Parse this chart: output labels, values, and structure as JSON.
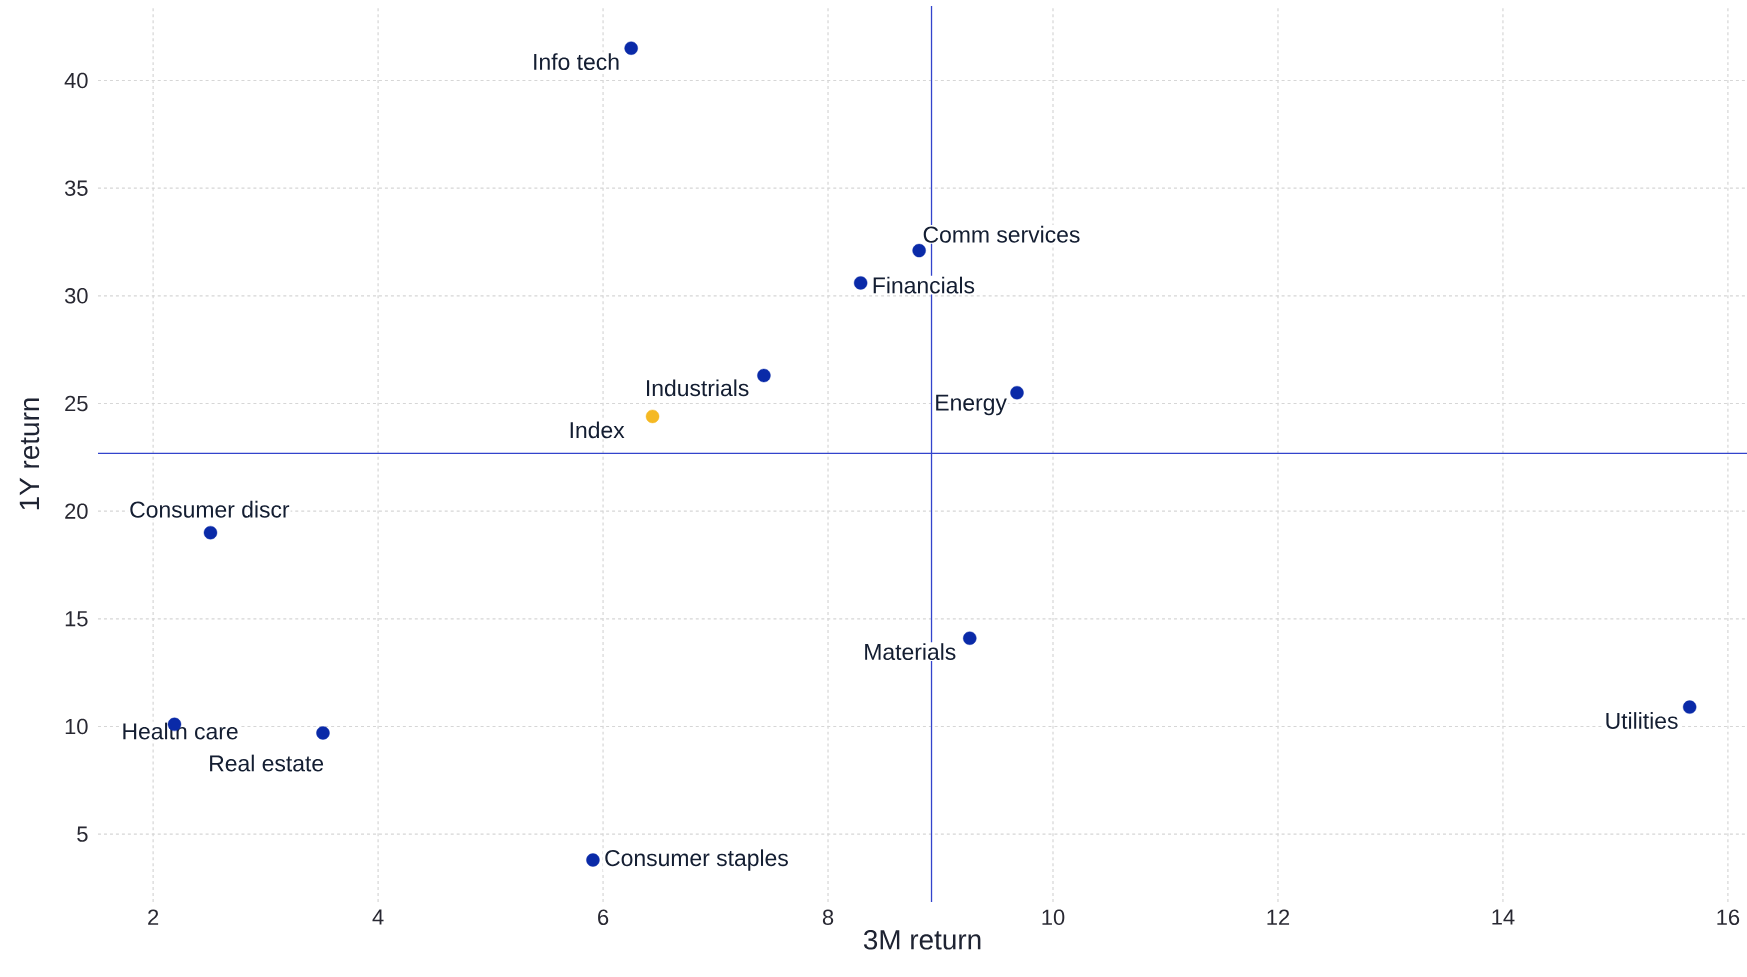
{
  "chart_data": {
    "type": "scatter",
    "xlabel": "3M return",
    "ylabel": "1Y return",
    "xlim": [
      1.51,
      16.17
    ],
    "ylim": [
      1.85,
      43.46
    ],
    "xticks": [
      2,
      4,
      6,
      8,
      10,
      12,
      14,
      16
    ],
    "yticks": [
      5,
      10,
      15,
      20,
      25,
      30,
      35,
      40
    ],
    "grid": true,
    "legend": false,
    "marker": "circle",
    "ref_lines": [
      {
        "axis": "x",
        "value": 8.92,
        "color": "#3344cc"
      },
      {
        "axis": "y",
        "value": 22.68,
        "color": "#3344cc"
      }
    ],
    "series": [
      {
        "name": "Info tech",
        "color": "#0a2aa8",
        "x": [
          6.25
        ],
        "values": [
          41.5
        ]
      },
      {
        "name": "Comm services",
        "color": "#0a2aa8",
        "x": [
          8.81
        ],
        "values": [
          32.1
        ]
      },
      {
        "name": "Financials",
        "color": "#0a2aa8",
        "x": [
          8.29
        ],
        "values": [
          30.6
        ]
      },
      {
        "name": "Industrials",
        "color": "#0a2aa8",
        "x": [
          7.43
        ],
        "values": [
          26.3
        ]
      },
      {
        "name": "Index",
        "color": "#f5b923",
        "x": [
          6.44
        ],
        "values": [
          24.4
        ]
      },
      {
        "name": "Energy",
        "color": "#0a2aa8",
        "x": [
          9.68
        ],
        "values": [
          25.5
        ]
      },
      {
        "name": "Consumer discr",
        "color": "#0a2aa8",
        "x": [
          2.51
        ],
        "values": [
          19.0
        ]
      },
      {
        "name": "Materials",
        "color": "#0a2aa8",
        "x": [
          9.26
        ],
        "values": [
          14.1
        ]
      },
      {
        "name": "Utilities",
        "color": "#0a2aa8",
        "x": [
          15.66
        ],
        "values": [
          10.9
        ]
      },
      {
        "name": "Health care",
        "color": "#0a2aa8",
        "x": [
          2.19
        ],
        "values": [
          10.1
        ]
      },
      {
        "name": "Real estate",
        "color": "#0a2aa8",
        "x": [
          3.51
        ],
        "values": [
          9.7
        ]
      },
      {
        "name": "Consumer staples",
        "color": "#0a2aa8",
        "x": [
          5.91
        ],
        "values": [
          3.8
        ]
      }
    ]
  }
}
